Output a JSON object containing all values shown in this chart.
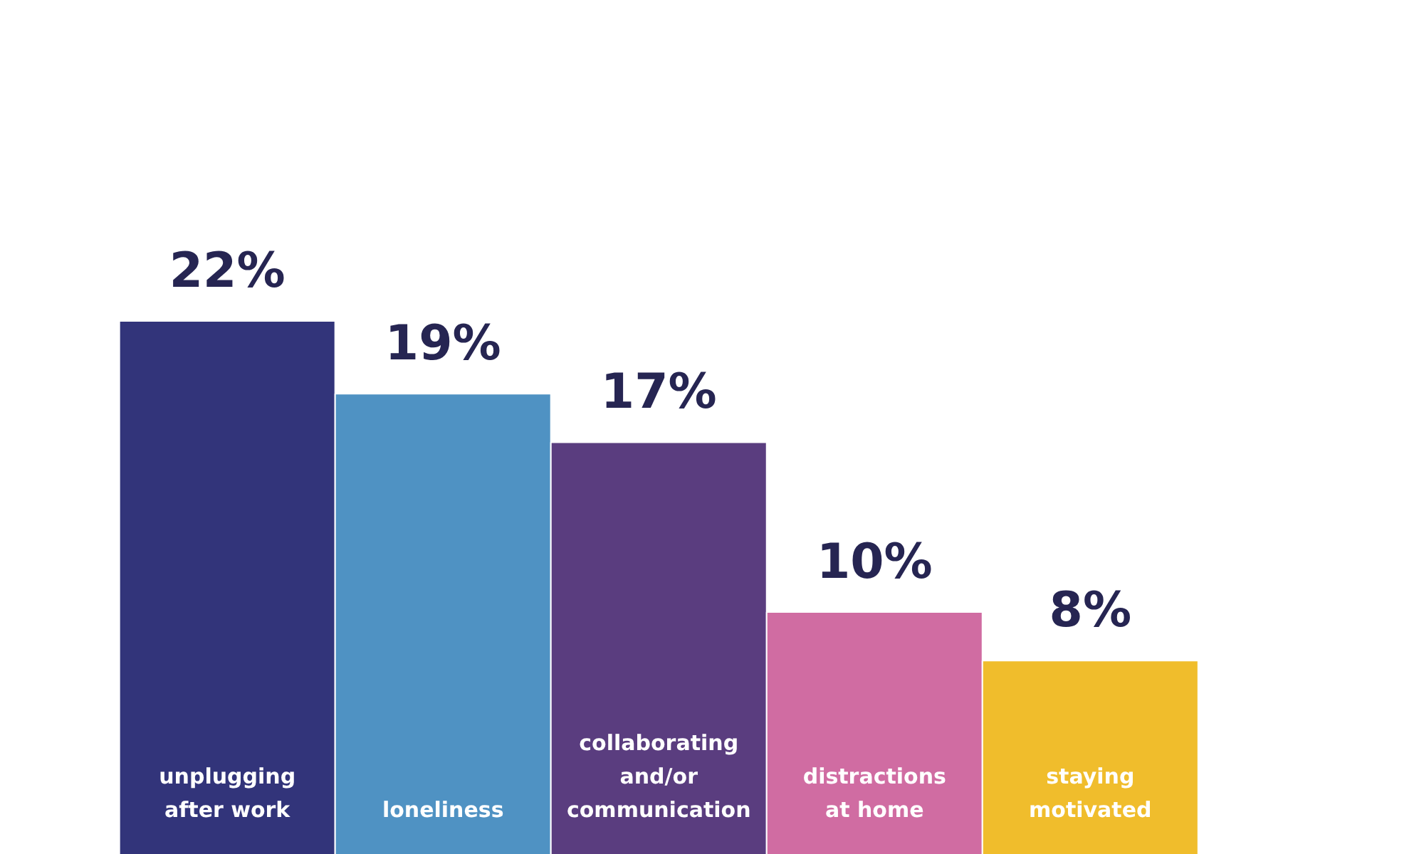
{
  "chart_data": {
    "type": "bar",
    "categories": [
      "unplugging after work",
      "loneliness",
      "collaborating and/or communication",
      "distractions at home",
      "staying motivated"
    ],
    "values": [
      22,
      19,
      17,
      10,
      8
    ],
    "colors": [
      "#32347a",
      "#4f92c3",
      "#5a3d7f",
      "#d06ca2",
      "#f0bd2c"
    ],
    "value_labels": [
      "22%",
      "19%",
      "17%",
      "10%",
      "8%"
    ]
  }
}
